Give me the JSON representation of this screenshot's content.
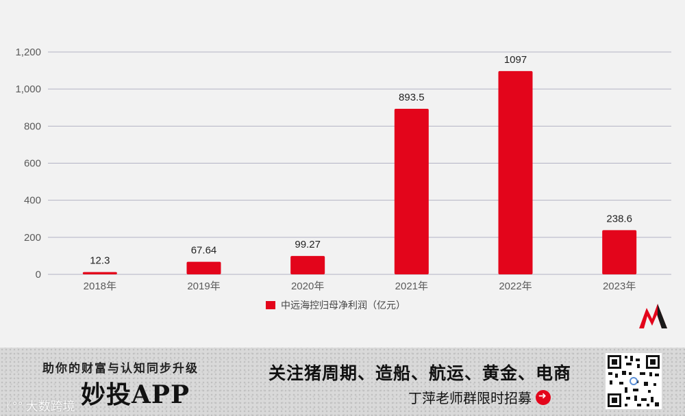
{
  "chart_data": {
    "type": "bar",
    "categories": [
      "2018年",
      "2019年",
      "2020年",
      "2021年",
      "2022年",
      "2023年"
    ],
    "series": [
      {
        "name": "中远海控归母净利润（亿元）",
        "values": [
          12.3,
          67.64,
          99.27,
          893.5,
          1097,
          238.6
        ]
      }
    ],
    "data_labels": [
      "12.3",
      "67.64",
      "99.27",
      "893.5",
      "1097",
      "238.6"
    ],
    "yticks": [
      0,
      200,
      400,
      600,
      800,
      1000,
      1200
    ],
    "ytick_labels": [
      "0",
      "200",
      "400",
      "600",
      "800",
      "1,000",
      "1,200"
    ],
    "ylim": [
      0,
      1200
    ],
    "grid": true,
    "legend_position": "bottom-center",
    "bar_color": "#e3051b",
    "gridline_color": "#b3b3c4"
  },
  "banner": {
    "slogan": "助你的财富与认知同步升级",
    "app_name": "妙投APP",
    "headline": "关注猪周期、造船、航运、黄金、电商",
    "cta": "丁萍老师群限时招募",
    "watermark": "大数跨境",
    "accent_color": "#e3051b"
  }
}
